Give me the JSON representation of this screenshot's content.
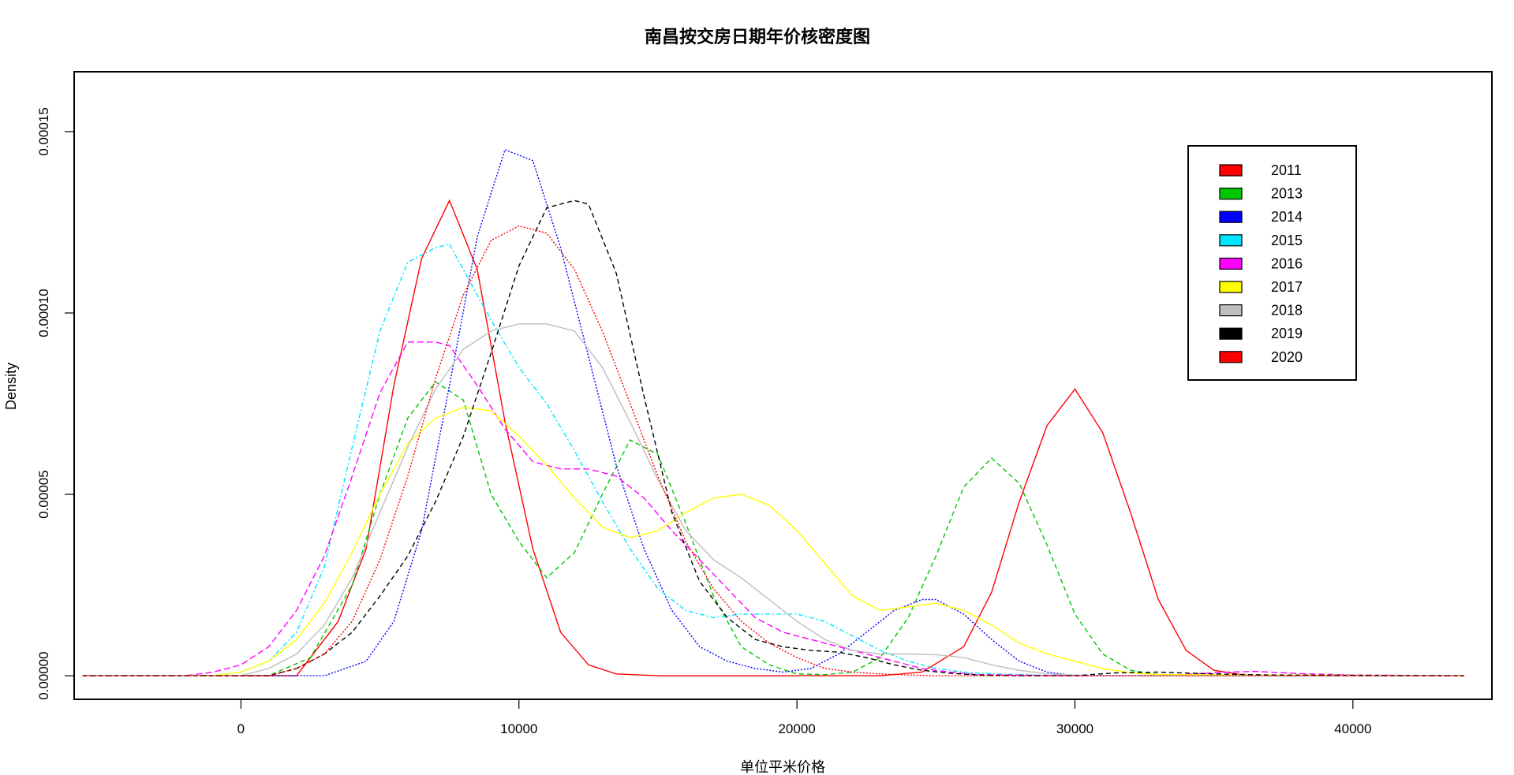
{
  "chart_data": {
    "type": "line",
    "title": "南昌按交房日期年价核密度图",
    "xlabel": "单位平米价格",
    "ylabel": "Density",
    "xlim": [
      -6000,
      45000
    ],
    "ylim": [
      -6.5e-06,
      0.0001665
    ],
    "xticks": [
      0,
      10000,
      20000,
      30000,
      40000
    ],
    "xtick_labels": [
      "0",
      "10000",
      "20000",
      "30000",
      "40000"
    ],
    "yticks": [
      0,
      5e-05,
      0.0001,
      0.00015
    ],
    "ytick_labels": [
      "0.00000",
      "0.00005",
      "0.00010",
      "0.00015"
    ],
    "grid": false,
    "legend_position": "top-right",
    "series": [
      {
        "name": "2011",
        "color": "#FF0000",
        "dash": "solid",
        "x": [
          -5700,
          2000,
          3500,
          4500,
          5500,
          6500,
          7500,
          8500,
          9500,
          10500,
          11500,
          12500,
          13500,
          15000,
          23000,
          24500,
          26000,
          27000,
          28000,
          29000,
          30000,
          31000,
          32000,
          33000,
          34000,
          35000,
          36000,
          37000,
          44000
        ],
        "y": [
          0,
          0,
          1.5e-05,
          3.5e-05,
          8e-05,
          0.000115,
          0.000131,
          0.000112,
          7e-05,
          3.5e-05,
          1.2e-05,
          3e-06,
          5e-07,
          0,
          0,
          1e-06,
          8e-06,
          2.3e-05,
          4.8e-05,
          6.9e-05,
          7.9e-05,
          6.7e-05,
          4.5e-05,
          2.1e-05,
          7e-06,
          1.5e-06,
          3e-07,
          0,
          0
        ]
      },
      {
        "name": "2013",
        "color": "#00C800",
        "dash": "6,4",
        "x": [
          -5700,
          1000,
          2500,
          4000,
          5000,
          6000,
          7000,
          8000,
          9000,
          10000,
          11000,
          12000,
          13000,
          14000,
          15000,
          16000,
          17000,
          18000,
          19000,
          20000,
          21000,
          22000,
          23000,
          24000,
          25000,
          26000,
          27000,
          28000,
          29000,
          30000,
          31000,
          32000,
          33000,
          44000
        ],
        "y": [
          0,
          0,
          5e-06,
          2.5e-05,
          5e-05,
          7.1e-05,
          8.1e-05,
          7.6e-05,
          5e-05,
          3.7e-05,
          2.7e-05,
          3.4e-05,
          5e-05,
          6.5e-05,
          6.1e-05,
          4.2e-05,
          2.2e-05,
          8e-06,
          3e-06,
          5e-07,
          3e-07,
          1e-06,
          5e-06,
          1.6e-05,
          3.3e-05,
          5.2e-05,
          6e-05,
          5.3e-05,
          3.6e-05,
          1.7e-05,
          6e-06,
          1.5e-06,
          3e-07,
          0
        ]
      },
      {
        "name": "2014",
        "color": "#0000FF",
        "dash": "2,2",
        "x": [
          -5700,
          3000,
          4500,
          5500,
          6500,
          7500,
          8500,
          9500,
          10500,
          11500,
          12500,
          13500,
          14500,
          15500,
          16500,
          17500,
          18500,
          19500,
          20500,
          21500,
          22500,
          23500,
          24500,
          25000,
          26000,
          27000,
          28000,
          29000,
          30000,
          44000
        ],
        "y": [
          0,
          0,
          4e-06,
          1.5e-05,
          4e-05,
          8e-05,
          0.000121,
          0.000145,
          0.000142,
          0.000118,
          8.8e-05,
          5.8e-05,
          3.5e-05,
          1.8e-05,
          8e-06,
          4e-06,
          2e-06,
          1e-06,
          2e-06,
          6e-06,
          1.2e-05,
          1.8e-05,
          2.1e-05,
          2.1e-05,
          1.7e-05,
          1e-05,
          4e-06,
          1e-06,
          0,
          0
        ]
      },
      {
        "name": "2015",
        "color": "#00E5FF",
        "dash": "6,3,2,3",
        "x": [
          -5700,
          -1000,
          0,
          1000,
          2000,
          3000,
          4000,
          5000,
          6000,
          7000,
          7500,
          8000,
          9000,
          10000,
          11000,
          12000,
          13000,
          14000,
          15000,
          16000,
          17000,
          18000,
          19000,
          20000,
          21000,
          22000,
          23000,
          24000,
          25000,
          26000,
          27000,
          28000,
          29000,
          30000,
          44000
        ],
        "y": [
          0,
          0,
          1e-06,
          4e-06,
          1.2e-05,
          3e-05,
          6.3e-05,
          9.5e-05,
          0.000114,
          0.000118,
          0.000119,
          0.000112,
          9.8e-05,
          8.5e-05,
          7.5e-05,
          6.2e-05,
          4.8e-05,
          3.5e-05,
          2.4e-05,
          1.8e-05,
          1.6e-05,
          1.7e-05,
          1.7e-05,
          1.7e-05,
          1.5e-05,
          1.1e-05,
          7e-06,
          4e-06,
          2e-06,
          1e-06,
          5e-07,
          3e-07,
          1e-07,
          0,
          0
        ]
      },
      {
        "name": "2016",
        "color": "#FF00FF",
        "dash": "8,4",
        "x": [
          -5700,
          -2000,
          -1000,
          0,
          1000,
          2000,
          3000,
          4000,
          5000,
          6000,
          7000,
          7500,
          8500,
          9500,
          10500,
          11500,
          12500,
          13500,
          14500,
          15500,
          16500,
          17500,
          18500,
          19500,
          20500,
          21500,
          22500,
          23500,
          24500,
          25500,
          26500,
          30000,
          33000,
          35500,
          36500,
          38000,
          40000,
          44000
        ],
        "y": [
          0,
          0,
          1e-06,
          3e-06,
          8e-06,
          1.8e-05,
          3.3e-05,
          5.5e-05,
          7.8e-05,
          9.2e-05,
          9.2e-05,
          9.1e-05,
          8e-05,
          6.8e-05,
          5.9e-05,
          5.7e-05,
          5.7e-05,
          5.5e-05,
          4.9e-05,
          4e-05,
          3.2e-05,
          2.4e-05,
          1.6e-05,
          1.2e-05,
          1e-05,
          8e-06,
          6e-06,
          4e-06,
          2e-06,
          1e-06,
          3e-07,
          0,
          0,
          1e-06,
          1.2e-06,
          6e-07,
          2e-07,
          0
        ]
      },
      {
        "name": "2017",
        "color": "#FFFF00",
        "dash": "solid",
        "x": [
          -5700,
          -1000,
          0,
          1000,
          2000,
          3000,
          4000,
          5000,
          6000,
          7000,
          8000,
          9000,
          10000,
          11000,
          12000,
          13000,
          14000,
          15000,
          16000,
          17000,
          18000,
          19000,
          20000,
          21000,
          22000,
          23000,
          24000,
          25000,
          26000,
          27000,
          28000,
          29000,
          30000,
          31000,
          32000,
          33000,
          44000
        ],
        "y": [
          0,
          0,
          1e-06,
          4e-06,
          1e-05,
          2e-05,
          3.4e-05,
          5e-05,
          6.4e-05,
          7.1e-05,
          7.4e-05,
          7.3e-05,
          6.6e-05,
          5.8e-05,
          4.9e-05,
          4.1e-05,
          3.8e-05,
          4e-05,
          4.5e-05,
          4.9e-05,
          5e-05,
          4.7e-05,
          4e-05,
          3.1e-05,
          2.2e-05,
          1.8e-05,
          1.9e-05,
          2e-05,
          1.8e-05,
          1.4e-05,
          9e-06,
          6e-06,
          4e-06,
          2e-06,
          8e-07,
          3e-07,
          0
        ]
      },
      {
        "name": "2018",
        "color": "#BEBEBE",
        "dash": "solid",
        "x": [
          -5700,
          0,
          1000,
          2000,
          3000,
          4000,
          5000,
          6000,
          7000,
          8000,
          9000,
          10000,
          11000,
          12000,
          13000,
          14000,
          15000,
          16000,
          17000,
          18000,
          19000,
          20000,
          21000,
          22000,
          23000,
          24000,
          25000,
          26000,
          27000,
          28000,
          29000,
          30000,
          31000,
          44000
        ],
        "y": [
          0,
          0,
          2e-06,
          6e-06,
          1.4e-05,
          2.7e-05,
          4.5e-05,
          6.3e-05,
          7.9e-05,
          9e-05,
          9.5e-05,
          9.7e-05,
          9.7e-05,
          9.5e-05,
          8.5e-05,
          7e-05,
          5.4e-05,
          4e-05,
          3.2e-05,
          2.7e-05,
          2.1e-05,
          1.5e-05,
          1e-05,
          7e-06,
          6e-06,
          6e-06,
          5.8e-06,
          5e-06,
          3e-06,
          1.5e-06,
          5e-07,
          2e-07,
          0,
          0
        ]
      },
      {
        "name": "2019",
        "color": "#000000",
        "dash": "6,4",
        "x": [
          -5700,
          1000,
          2000,
          3000,
          4000,
          5000,
          6000,
          7000,
          8000,
          9000,
          10000,
          11000,
          12000,
          12500,
          13500,
          14500,
          15500,
          16500,
          17500,
          18500,
          19500,
          20500,
          21500,
          22500,
          23500,
          24500,
          25500,
          26500,
          28000,
          30000,
          31500,
          33000,
          35000,
          37000,
          44000
        ],
        "y": [
          0,
          0,
          2e-06,
          6e-06,
          1.2e-05,
          2.2e-05,
          3.3e-05,
          4.8e-05,
          6.6e-05,
          8.9e-05,
          0.000113,
          0.000129,
          0.000131,
          0.00013,
          0.000111,
          7.7e-05,
          4.5e-05,
          2.6e-05,
          1.6e-05,
          1e-05,
          8e-06,
          7e-06,
          6.5e-06,
          5e-06,
          3e-06,
          1.5e-06,
          7e-07,
          2e-07,
          0,
          0,
          8e-07,
          1e-06,
          5e-07,
          2e-07,
          0
        ]
      },
      {
        "name": "2020",
        "color": "#FF0000",
        "dash": "2,2",
        "x": [
          -5700,
          1000,
          2000,
          3000,
          4000,
          5000,
          6000,
          7000,
          8000,
          9000,
          10000,
          11000,
          12000,
          13000,
          14000,
          15000,
          16000,
          17000,
          18000,
          19000,
          20000,
          21000,
          22000,
          23000,
          24000,
          25000,
          44000
        ],
        "y": [
          0,
          0,
          2e-06,
          6e-06,
          1.5e-05,
          3.2e-05,
          5.5e-05,
          8.2e-05,
          0.000105,
          0.00012,
          0.000124,
          0.000122,
          0.000112,
          9.5e-05,
          7.5e-05,
          5.5e-05,
          3.7e-05,
          2.4e-05,
          1.5e-05,
          9e-06,
          5e-06,
          2e-06,
          1e-06,
          5e-07,
          2e-07,
          0,
          0
        ]
      }
    ]
  }
}
